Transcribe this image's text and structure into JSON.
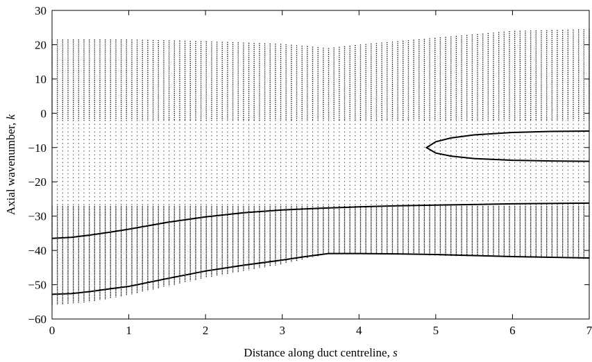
{
  "chart_data": {
    "type": "scatter",
    "title": "",
    "xlabel": "Distance along duct centreline, ",
    "xlabel_var": "s",
    "ylabel": "Axial wavenumber, ",
    "ylabel_var": "k",
    "xlim": [
      0,
      7
    ],
    "ylim": [
      -60,
      30
    ],
    "xticks": [
      0,
      1,
      2,
      3,
      4,
      5,
      6,
      7
    ],
    "yticks": [
      -60,
      -50,
      -40,
      -30,
      -20,
      -10,
      0,
      10,
      20,
      30
    ],
    "grid": false,
    "series": [
      {
        "style": "dotted-columns",
        "description_values": "wavenumber samples at each axial station",
        "upper_envelope": {
          "x": [
            0,
            1,
            2,
            3,
            3.6,
            4,
            5,
            6,
            7
          ],
          "y": [
            21.5,
            21.5,
            21,
            20.2,
            19,
            20,
            22,
            24,
            24.5
          ]
        },
        "lower_envelope": {
          "x": [
            0,
            0.5,
            1,
            2,
            3,
            3.6,
            4,
            5,
            6,
            7
          ],
          "y": [
            -56,
            -55,
            -53,
            -48,
            -44,
            -41,
            -41,
            -41.5,
            -42,
            -42.5
          ]
        }
      },
      {
        "style": "solid",
        "x": [
          0,
          0.25,
          0.5,
          0.75,
          1,
          1.5,
          2,
          2.5,
          3,
          3.5,
          4,
          4.5,
          5,
          5.5,
          6,
          6.5,
          7
        ],
        "y": [
          -36.5,
          -36.2,
          -35.5,
          -34.7,
          -33.8,
          -31.8,
          -30.2,
          -29,
          -28.2,
          -27.7,
          -27.3,
          -27,
          -26.8,
          -26.6,
          -26.4,
          -26.3,
          -26.2
        ]
      },
      {
        "style": "solid",
        "x": [
          0,
          0.25,
          0.5,
          0.75,
          1,
          1.5,
          2,
          2.5,
          3,
          3.3,
          3.6,
          4,
          4.5,
          5,
          5.5,
          6,
          6.5,
          7
        ],
        "y": [
          -52.8,
          -52.6,
          -52,
          -51.2,
          -50.5,
          -48.2,
          -46,
          -44.3,
          -42.8,
          -41.8,
          -40.9,
          -40.9,
          -41,
          -41.2,
          -41.5,
          -41.8,
          -42,
          -42.2
        ]
      },
      {
        "style": "solid",
        "x": [
          7,
          6.5,
          6,
          5.5,
          5.2,
          5,
          4.88,
          5,
          5.2,
          5.5,
          6,
          6.5,
          7
        ],
        "y": [
          -5.2,
          -5.3,
          -5.6,
          -6.3,
          -7.2,
          -8.3,
          -10,
          -11.6,
          -12.5,
          -13.2,
          -13.7,
          -13.9,
          -14
        ]
      }
    ]
  }
}
